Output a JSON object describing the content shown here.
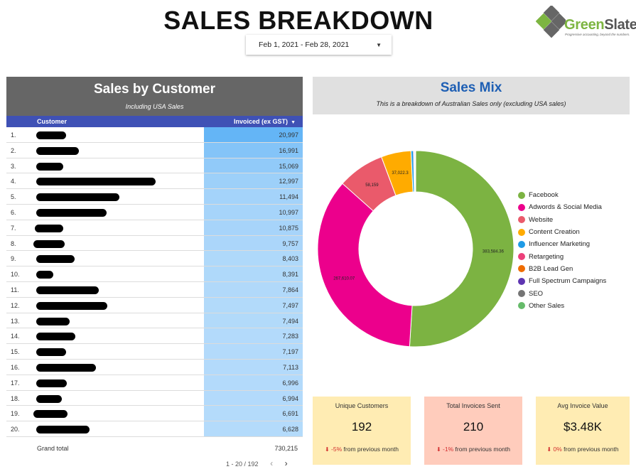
{
  "header": {
    "title": "SALES BREAKDOWN",
    "date_range": "Feb 1, 2021 - Feb 28, 2021",
    "logo_word_green": "Green",
    "logo_word_gray": "Slate",
    "logo_tagline": "Progressive accounting, beyond the numbers."
  },
  "customers": {
    "title": "Sales by Customer",
    "subtitle": "Including USA Sales",
    "col_customer": "Customer",
    "col_invoiced": "Invoiced (ex GST)",
    "max_value": 20997,
    "rows": [
      {
        "rank": "1.",
        "value": "20,997",
        "amount": 20997
      },
      {
        "rank": "2.",
        "value": "16,991",
        "amount": 16991
      },
      {
        "rank": "3.",
        "value": "15,069",
        "amount": 15069
      },
      {
        "rank": "4.",
        "value": "12,997",
        "amount": 12997
      },
      {
        "rank": "5.",
        "value": "11,494",
        "amount": 11494
      },
      {
        "rank": "6.",
        "value": "10,997",
        "amount": 10997
      },
      {
        "rank": "7.",
        "value": "10,875",
        "amount": 10875
      },
      {
        "rank": "8.",
        "value": "9,757",
        "amount": 9757
      },
      {
        "rank": "9.",
        "value": "8,403",
        "amount": 8403
      },
      {
        "rank": "10.",
        "value": "8,391",
        "amount": 8391
      },
      {
        "rank": "11.",
        "value": "7,864",
        "amount": 7864
      },
      {
        "rank": "12.",
        "value": "7,497",
        "amount": 7497
      },
      {
        "rank": "13.",
        "value": "7,494",
        "amount": 7494
      },
      {
        "rank": "14.",
        "value": "7,283",
        "amount": 7283
      },
      {
        "rank": "15.",
        "value": "7,197",
        "amount": 7197
      },
      {
        "rank": "16.",
        "value": "7,113",
        "amount": 7113
      },
      {
        "rank": "17.",
        "value": "6,996",
        "amount": 6996
      },
      {
        "rank": "18.",
        "value": "6,994",
        "amount": 6994
      },
      {
        "rank": "19.",
        "value": "6,691",
        "amount": 6691
      },
      {
        "rank": "20.",
        "value": "6,628",
        "amount": 6628
      }
    ],
    "grand_total_label": "Grand total",
    "grand_total_value": "730,215",
    "pagination": "1 - 20 / 192"
  },
  "sales_mix": {
    "title": "Sales Mix",
    "subtitle": "This is a breakdown of Australian Sales only (excluding USA sales)",
    "slices": [
      {
        "label": "Facebook",
        "value": 383584.36,
        "color": "#7cb342",
        "data_label": "383,584.36"
      },
      {
        "label": "Adwords & Social Media",
        "value": 267610.07,
        "color": "#ec008c",
        "data_label": "267,610.07"
      },
      {
        "label": "Website",
        "value": 58159,
        "color": "#ea5a6b",
        "data_label": "58,159"
      },
      {
        "label": "Content Creation",
        "value": 37022.3,
        "color": "#ffab00",
        "data_label": "37,022.3"
      },
      {
        "label": "Influencer Marketing",
        "value": 3000,
        "color": "#1e9be6",
        "data_label": ""
      },
      {
        "label": "Retargeting",
        "value": 1200,
        "color": "#ec407a",
        "data_label": ""
      },
      {
        "label": "B2B Lead Gen",
        "value": 700,
        "color": "#ef6c00",
        "data_label": ""
      },
      {
        "label": "Full Spectrum Campaigns",
        "value": 400,
        "color": "#5e35b1",
        "data_label": ""
      },
      {
        "label": "SEO",
        "value": 300,
        "color": "#757575",
        "data_label": ""
      },
      {
        "label": "Other Sales",
        "value": 200,
        "color": "#66bb6a",
        "data_label": ""
      }
    ]
  },
  "kpis": [
    {
      "title": "Unique Customers",
      "value": "192",
      "delta": "-5%",
      "delta_text": " from previous month",
      "bg": "#ffecb3"
    },
    {
      "title": "Total Invoices Sent",
      "value": "210",
      "delta": "-1%",
      "delta_text": " from previous month",
      "bg": "#ffccbc"
    },
    {
      "title": "Avg Invoice Value",
      "value": "$3.48K",
      "delta": "0%",
      "delta_text": " from previous month",
      "bg": "#ffecb3"
    }
  ]
}
